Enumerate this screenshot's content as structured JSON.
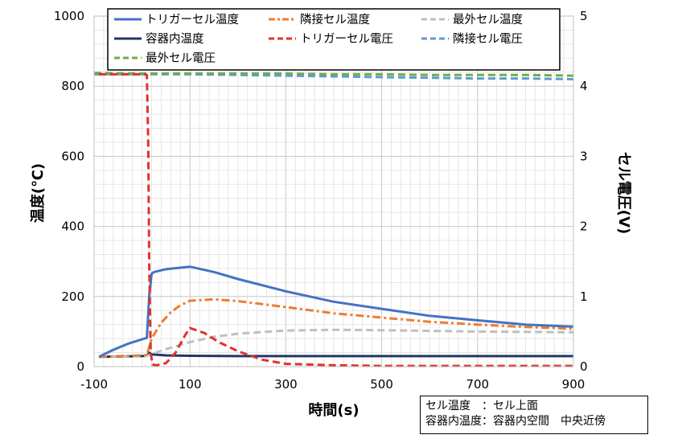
{
  "chart_data": {
    "type": "line",
    "xlabel": "時間(s)",
    "ylabel": "温度(℃)",
    "y2label": "セル電圧(V)",
    "xlim": [
      -100,
      900
    ],
    "ylim": [
      0,
      1000
    ],
    "y2lim": [
      0,
      5
    ],
    "xticks": [
      -100,
      100,
      300,
      500,
      700,
      900
    ],
    "yticks": [
      0,
      200,
      400,
      600,
      800,
      1000
    ],
    "y2ticks": [
      0,
      1,
      2,
      3,
      4,
      5
    ],
    "grid": true,
    "legend_position": "top",
    "series": [
      {
        "name": "トリガーセル温度",
        "axis": "left",
        "color": "#4472C4",
        "style": "solid",
        "x": [
          -90,
          -60,
          -30,
          0,
          10,
          15,
          20,
          25,
          50,
          100,
          150,
          200,
          300,
          400,
          500,
          600,
          700,
          800,
          900
        ],
        "y": [
          28,
          48,
          65,
          78,
          82,
          200,
          265,
          270,
          278,
          285,
          270,
          250,
          215,
          185,
          165,
          145,
          132,
          120,
          114
        ]
      },
      {
        "name": "隣接セル温度",
        "axis": "left",
        "color": "#ED7D31",
        "style": "dashdot",
        "x": [
          -90,
          0,
          10,
          20,
          40,
          60,
          80,
          100,
          150,
          200,
          300,
          400,
          500,
          600,
          700,
          800,
          900
        ],
        "y": [
          28,
          32,
          33,
          80,
          125,
          155,
          175,
          188,
          192,
          187,
          170,
          152,
          140,
          128,
          120,
          113,
          108
        ]
      },
      {
        "name": "最外セル温度",
        "axis": "left",
        "color": "#BFBFBF",
        "style": "dashed",
        "x": [
          -90,
          0,
          10,
          50,
          100,
          150,
          200,
          300,
          400,
          500,
          600,
          700,
          800,
          900
        ],
        "y": [
          28,
          30,
          31,
          50,
          70,
          85,
          94,
          103,
          105,
          104,
          102,
          100,
          99,
          98
        ]
      },
      {
        "name": "容器内温度",
        "axis": "left",
        "color": "#1F3864",
        "style": "solid",
        "x": [
          -90,
          0,
          10,
          15,
          20,
          50,
          100,
          200,
          300,
          400,
          500,
          600,
          700,
          800,
          900
        ],
        "y": [
          28,
          30,
          31,
          40,
          35,
          32,
          31,
          30,
          30,
          30,
          30,
          30,
          30,
          30,
          30
        ]
      },
      {
        "name": "トリガーセル電圧",
        "axis": "right",
        "color": "#E0312E",
        "style": "dashed",
        "x": [
          -90,
          0,
          5,
          10,
          13,
          15,
          18,
          22,
          30,
          50,
          70,
          90,
          100,
          130,
          160,
          200,
          250,
          300,
          400,
          500,
          600,
          700,
          800,
          900
        ],
        "y": [
          4.17,
          4.17,
          4.17,
          4.16,
          3.2,
          1.5,
          0.2,
          0.03,
          0.02,
          0.05,
          0.2,
          0.45,
          0.55,
          0.48,
          0.35,
          0.22,
          0.1,
          0.04,
          0.02,
          0.01,
          0.01,
          0.01,
          0.01,
          0.01
        ]
      },
      {
        "name": "隣接セル電圧",
        "axis": "right",
        "color": "#5B9BD5",
        "style": "dashed",
        "x": [
          -100,
          0,
          100,
          200,
          300,
          400,
          500,
          600,
          700,
          800,
          900
        ],
        "y": [
          4.17,
          4.17,
          4.17,
          4.16,
          4.15,
          4.14,
          4.13,
          4.12,
          4.11,
          4.11,
          4.1
        ]
      },
      {
        "name": "最外セル電圧",
        "axis": "right",
        "color": "#70AD47",
        "style": "dashed",
        "x": [
          -100,
          0,
          100,
          200,
          300,
          400,
          500,
          600,
          700,
          800,
          900
        ],
        "y": [
          4.19,
          4.18,
          4.18,
          4.18,
          4.18,
          4.17,
          4.17,
          4.16,
          4.16,
          4.16,
          4.15
        ]
      }
    ]
  },
  "note": {
    "line1": "セル温度　：セル上面",
    "line2": "容器内温度：容器内空間　中央近傍"
  }
}
